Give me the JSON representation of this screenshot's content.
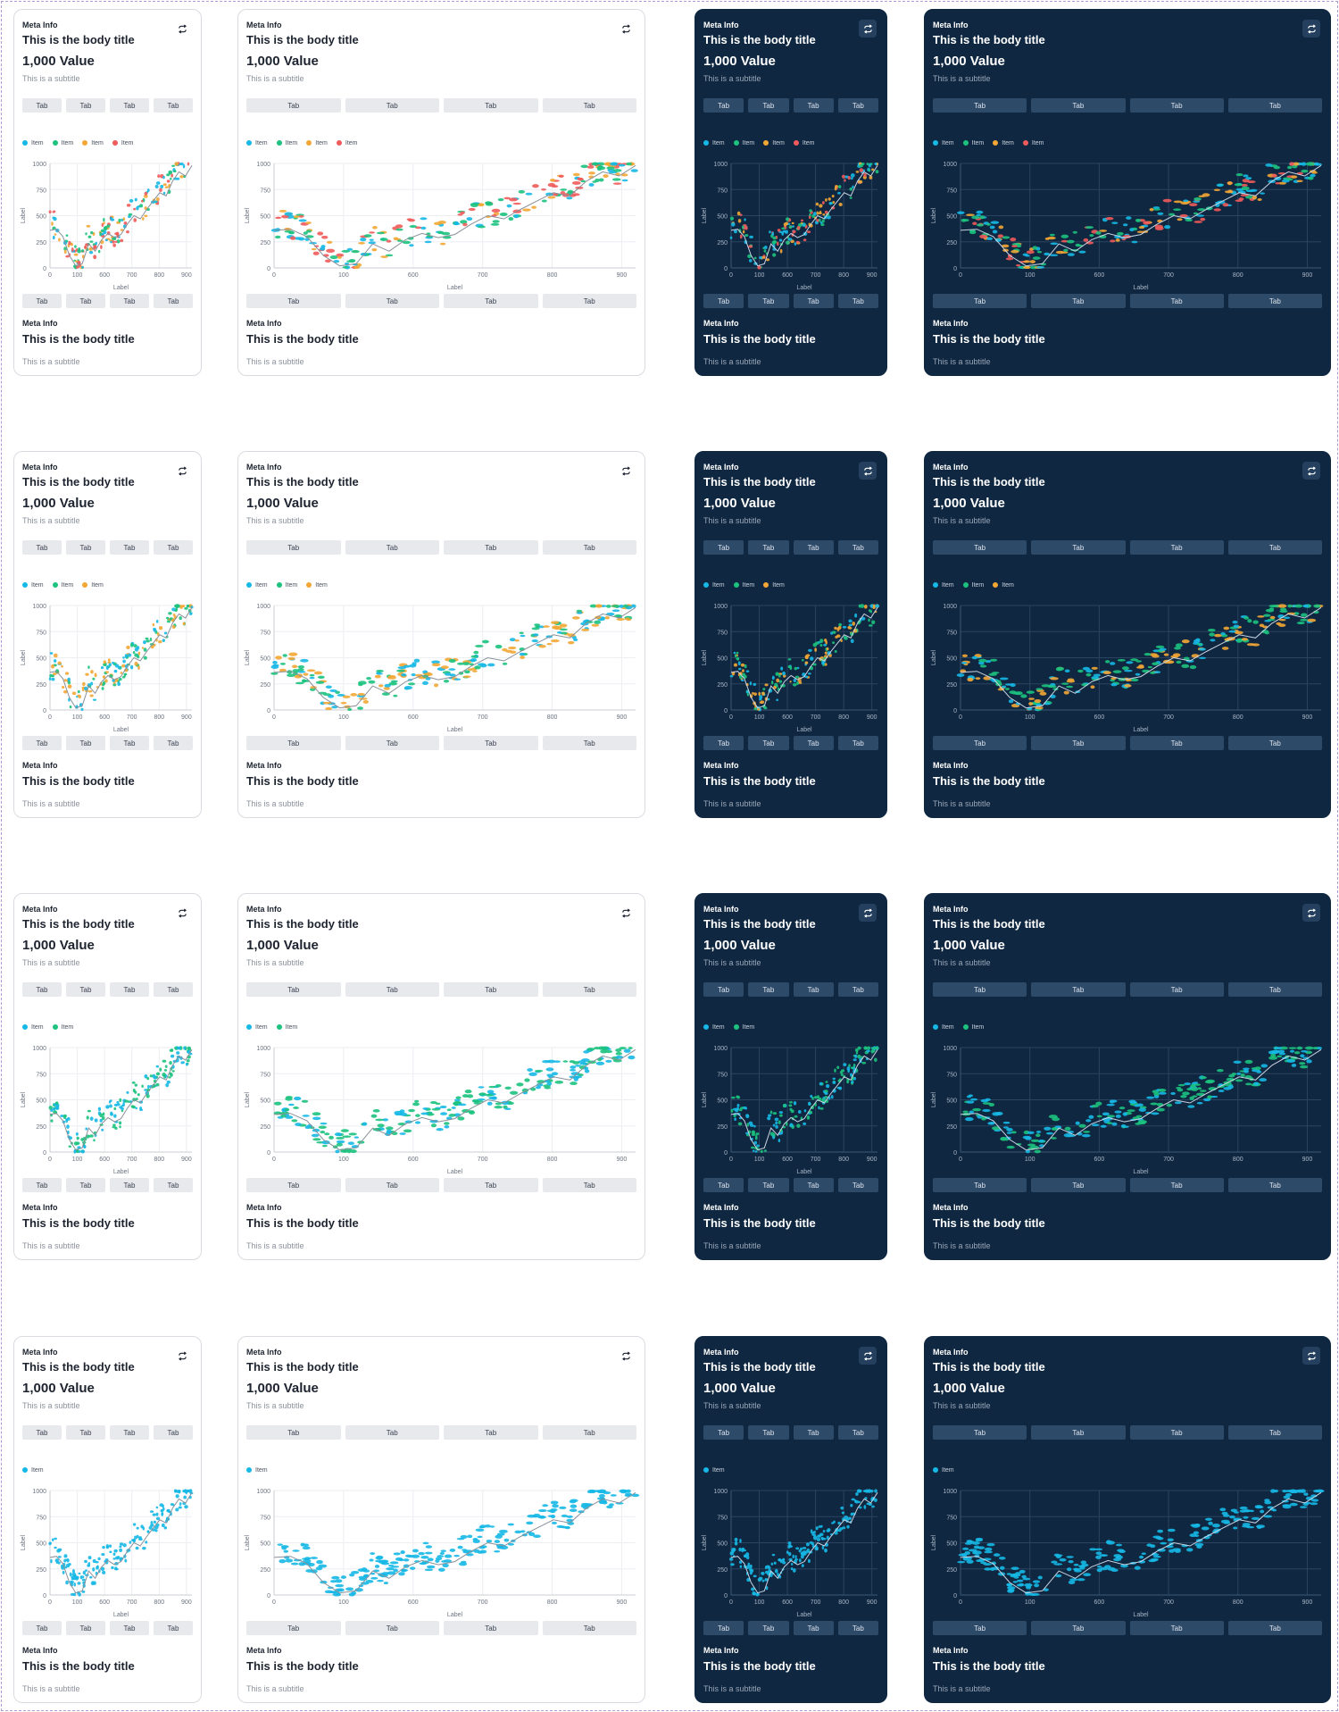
{
  "card": {
    "meta": "Meta Info",
    "title": "This is the body title",
    "value": "1,000 Value",
    "subtitle": "This is a subtitle",
    "tabs": [
      "Tab",
      "Tab",
      "Tab",
      "Tab"
    ],
    "refresh_icon": "refresh-icon"
  },
  "colors": {
    "series": [
      "#16b8e6",
      "#1cc27e",
      "#f2a735",
      "#ef5b5b"
    ],
    "dark_bg": "#0f2740",
    "light_border": "#d9dbe0"
  },
  "legend_label": "Item",
  "rows": [
    {
      "series_count": 4
    },
    {
      "series_count": 3
    },
    {
      "series_count": 2
    },
    {
      "series_count": 1
    }
  ],
  "chart_data": {
    "type": "scatter",
    "xlabel": "Label",
    "ylabel": "Label",
    "x_ticks": [
      "0",
      "100",
      "600",
      "700",
      "800",
      "900"
    ],
    "y_ticks": [
      "0",
      "250",
      "500",
      "750",
      "1000"
    ],
    "ylim": [
      0,
      1000
    ],
    "grid": true,
    "trend_line": [
      [
        0,
        360
      ],
      [
        50,
        370
      ],
      [
        100,
        300
      ],
      [
        150,
        120
      ],
      [
        200,
        20
      ],
      [
        250,
        40
      ],
      [
        300,
        230
      ],
      [
        350,
        160
      ],
      [
        400,
        270
      ],
      [
        450,
        330
      ],
      [
        500,
        290
      ],
      [
        550,
        320
      ],
      [
        600,
        420
      ],
      [
        650,
        500
      ],
      [
        700,
        470
      ],
      [
        750,
        560
      ],
      [
        800,
        640
      ],
      [
        850,
        720
      ],
      [
        900,
        690
      ],
      [
        950,
        830
      ],
      [
        1000,
        920
      ],
      [
        1050,
        880
      ],
      [
        1100,
        980
      ]
    ],
    "series": [
      {
        "name": "Item"
      },
      {
        "name": "Item"
      },
      {
        "name": "Item"
      },
      {
        "name": "Item"
      }
    ]
  }
}
